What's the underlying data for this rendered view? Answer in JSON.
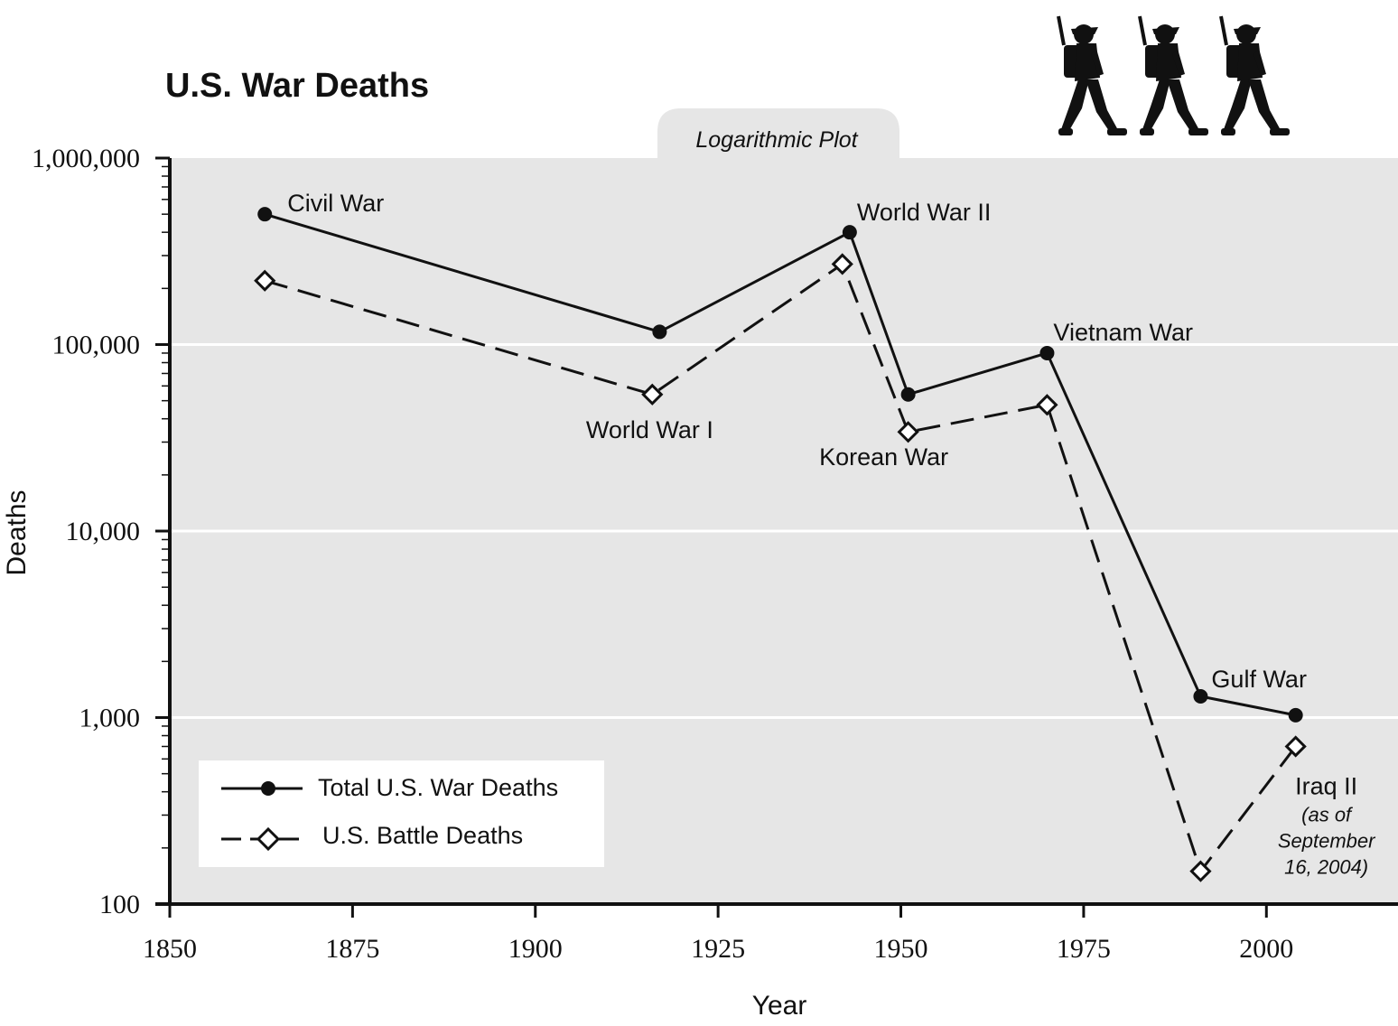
{
  "chart_data": {
    "type": "line",
    "title": "U.S. War Deaths",
    "subtitle": "Logarithmic Plot",
    "xlabel": "Year",
    "ylabel": "Deaths",
    "xlim": [
      1850,
      2018
    ],
    "ylim": [
      100,
      1000000
    ],
    "yscale": "log",
    "grid": "horizontal at decades",
    "legend_position": "bottom-left",
    "x_ticks": [
      1850,
      1875,
      1900,
      1925,
      1950,
      1975,
      2000
    ],
    "y_ticks": [
      {
        "value": 100,
        "label": "100"
      },
      {
        "value": 1000,
        "label": "1,000"
      },
      {
        "value": 10000,
        "label": "10,000"
      },
      {
        "value": 100000,
        "label": "100,000"
      },
      {
        "value": 1000000,
        "label": "1,000,000"
      }
    ],
    "series": [
      {
        "name": "Total U.S. War Deaths",
        "style": "solid",
        "marker": "filled-circle",
        "x": [
          1863,
          1917,
          1943,
          1951,
          1970,
          1991,
          2004
        ],
        "values": [
          500000,
          117000,
          400000,
          54000,
          90000,
          1300,
          1030
        ]
      },
      {
        "name": "U.S. Battle Deaths",
        "style": "dashed",
        "marker": "open-diamond",
        "x": [
          1863,
          1916,
          1942,
          1951,
          1970,
          1991,
          2004
        ],
        "values": [
          220000,
          54000,
          270000,
          34000,
          47500,
          150,
          700
        ]
      }
    ],
    "annotations": [
      {
        "text": "Civil War",
        "x": 1863,
        "y": 500000
      },
      {
        "text": "World War I",
        "x": 1917,
        "y": 54000
      },
      {
        "text": "World War II",
        "x": 1943,
        "y": 400000
      },
      {
        "text": "Korean War",
        "x": 1951,
        "y": 34000
      },
      {
        "text": "Vietnam War",
        "x": 1970,
        "y": 90000
      },
      {
        "text": "Gulf War",
        "x": 1991,
        "y": 1300
      },
      {
        "text": "Iraq II",
        "x": 2004,
        "y": 700
      }
    ],
    "note_lines": [
      "(as of",
      "September",
      "16, 2004)"
    ],
    "colors": {
      "plot_bg": "#e6e6e6",
      "line": "#111111",
      "grid": "#ffffff"
    }
  },
  "icons": [
    "soldier-silhouette-icon",
    "soldier-silhouette-icon",
    "soldier-silhouette-icon"
  ]
}
